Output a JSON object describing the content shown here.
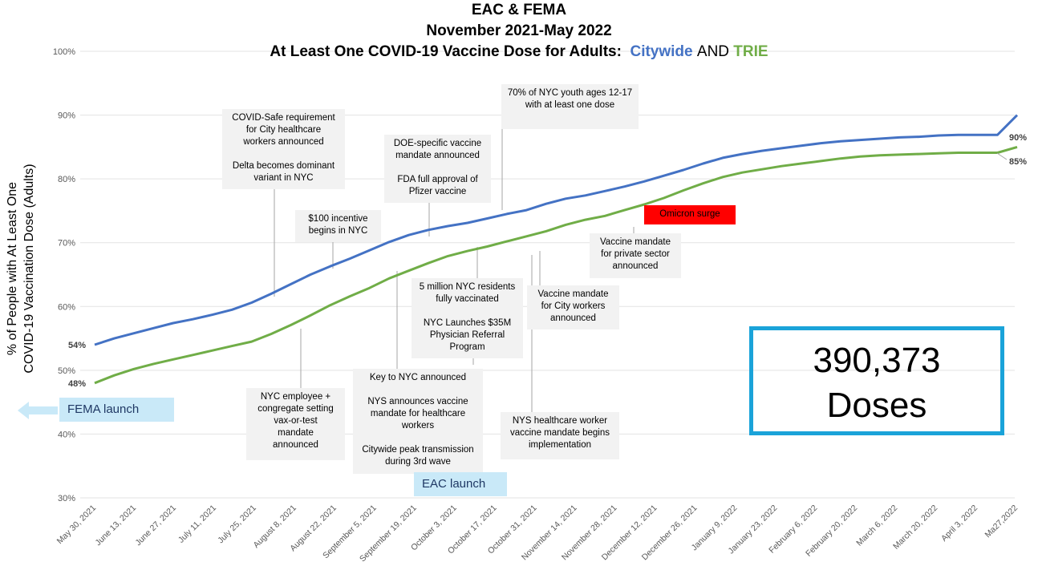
{
  "title": {
    "line1": "EAC & FEMA",
    "line2": "November 2021-May 2022",
    "line3_prefix": "At Least One COVID-19 Vaccine Dose for Adults:",
    "line3_city": "Citywide",
    "line3_and": "AND",
    "line3_trie": "TRIE"
  },
  "annotations": [
    {
      "id": "ann-covid-safe",
      "text": "COVID-Safe requirement\nfor City healthcare\nworkers announced\n\nDelta becomes dominant\nvariant in NYC"
    },
    {
      "id": "ann-incentive",
      "text": "$100 incentive\nbegins in NYC"
    },
    {
      "id": "ann-doe",
      "text": "DOE-specific vaccine\nmandate announced\n\nFDA full approval of\nPfizer vaccine"
    },
    {
      "id": "ann-youth",
      "text": "70% of NYC youth ages 12-17\nwith at least one dose"
    },
    {
      "id": "ann-omicron",
      "text": "Omicron surge"
    },
    {
      "id": "ann-private",
      "text": "Vaccine mandate\nfor private sector\nannounced"
    },
    {
      "id": "ann-5million",
      "text": "5 million NYC residents\nfully vaccinated\n\nNYC Launches $35M\nPhysician Referral\nProgram"
    },
    {
      "id": "ann-city-workers",
      "text": "Vaccine mandate\nfor City workers\nannounced"
    },
    {
      "id": "ann-nyc-employee",
      "text": "NYC employee +\ncongregate setting\nvax-or-test\nmandate\nannounced"
    },
    {
      "id": "ann-key-nyc",
      "text": "Key to NYC announced\n\nNYS announces vaccine\nmandate for healthcare\nworkers\n\nCitywide peak transmission\nduring 3rd wave"
    },
    {
      "id": "ann-nys-hcw",
      "text": "NYS healthcare worker\nvaccine mandate begins\nimplementation"
    }
  ],
  "launch_labels": {
    "fema": "FEMA launch",
    "eac": "EAC launch"
  },
  "doses_box": {
    "number": "390,373",
    "label": "Doses"
  },
  "colors": {
    "citywide": "#4472C4",
    "trie": "#70AD47",
    "doses_border": "#1AA3D9",
    "launch_bg": "#C9E9F8",
    "omicron_bg": "#FF0000"
  },
  "chart_data": {
    "type": "line",
    "ylabel": "% of People with At Least One COVID-19 Vaccination Dose (Adults)",
    "ylabel_line1": "% of People with At Least One",
    "ylabel_line2": "COVID-19 Vaccination Dose (Adults)",
    "xlabel": "",
    "ylim": [
      30,
      100
    ],
    "yticks": [
      "30%",
      "40%",
      "50%",
      "60%",
      "70%",
      "80%",
      "90%",
      "100%"
    ],
    "ytick_values": [
      30,
      40,
      50,
      60,
      70,
      80,
      90,
      100
    ],
    "x_tick_labels": [
      "May 30, 2021",
      "June 13, 2021",
      "June 27, 2021",
      "July 11, 2021",
      "July 25, 2021",
      "August 8, 2021",
      "August 22, 2021",
      "September 5, 2021",
      "September 19, 2021",
      "October 3, 2021",
      "October 17, 2021",
      "October 31, 2021",
      "November 14, 2021",
      "November 28, 2021",
      "December 12, 2021",
      "December 26, 2021",
      "January 9, 2022",
      "January 23, 2022",
      "February 6, 2022",
      "February 20, 2022",
      "March 6, 2022",
      "March 20, 2022",
      "April 3, 2022",
      "Ma27,2022"
    ],
    "grid": "horizontal",
    "series": [
      {
        "name": "Citywide",
        "color": "#4472C4",
        "x": [
          "2021-05-30",
          "2021-06-06",
          "2021-06-13",
          "2021-06-20",
          "2021-06-27",
          "2021-07-04",
          "2021-07-11",
          "2021-07-18",
          "2021-07-25",
          "2021-08-01",
          "2021-08-08",
          "2021-08-15",
          "2021-08-22",
          "2021-08-29",
          "2021-09-05",
          "2021-09-12",
          "2021-09-19",
          "2021-09-26",
          "2021-10-03",
          "2021-10-10",
          "2021-10-17",
          "2021-10-24",
          "2021-10-31",
          "2021-11-07",
          "2021-11-14",
          "2021-11-21",
          "2021-11-28",
          "2021-12-05",
          "2021-12-12",
          "2021-12-19",
          "2021-12-26",
          "2022-01-02",
          "2022-01-09",
          "2022-01-16",
          "2022-01-23",
          "2022-01-30",
          "2022-02-06",
          "2022-02-13",
          "2022-02-20",
          "2022-02-27",
          "2022-03-06",
          "2022-03-13",
          "2022-03-20",
          "2022-03-27",
          "2022-04-03",
          "2022-04-10",
          "2022-04-17",
          "2022-04-24"
        ],
        "values": [
          54,
          55,
          55.8,
          56.6,
          57.4,
          58,
          58.7,
          59.5,
          60.6,
          62,
          63.5,
          65,
          66.3,
          67.5,
          68.8,
          70.1,
          71.2,
          72,
          72.6,
          73.1,
          73.8,
          74.5,
          75.1,
          76.1,
          76.9,
          77.4,
          78.1,
          78.8,
          79.6,
          80.5,
          81.4,
          82.4,
          83.3,
          83.9,
          84.4,
          84.8,
          85.2,
          85.6,
          85.9,
          86.1,
          86.3,
          86.5,
          86.6,
          86.8,
          86.9,
          86.9,
          86.9,
          90
        ],
        "end_label": "90%",
        "start_label": "54%"
      },
      {
        "name": "TRIE",
        "color": "#70AD47",
        "x": [
          "2021-05-30",
          "2021-06-06",
          "2021-06-13",
          "2021-06-20",
          "2021-06-27",
          "2021-07-04",
          "2021-07-11",
          "2021-07-18",
          "2021-07-25",
          "2021-08-01",
          "2021-08-08",
          "2021-08-15",
          "2021-08-22",
          "2021-08-29",
          "2021-09-05",
          "2021-09-12",
          "2021-09-19",
          "2021-09-26",
          "2021-10-03",
          "2021-10-10",
          "2021-10-17",
          "2021-10-24",
          "2021-10-31",
          "2021-11-07",
          "2021-11-14",
          "2021-11-21",
          "2021-11-28",
          "2021-12-05",
          "2021-12-12",
          "2021-12-19",
          "2021-12-26",
          "2022-01-02",
          "2022-01-09",
          "2022-01-16",
          "2022-01-23",
          "2022-01-30",
          "2022-02-06",
          "2022-02-13",
          "2022-02-20",
          "2022-02-27",
          "2022-03-06",
          "2022-03-13",
          "2022-03-20",
          "2022-03-27",
          "2022-04-03",
          "2022-04-10",
          "2022-04-17",
          "2022-04-24"
        ],
        "values": [
          48,
          49.2,
          50.2,
          51,
          51.7,
          52.4,
          53.1,
          53.8,
          54.5,
          55.7,
          57.1,
          58.6,
          60.2,
          61.6,
          62.9,
          64.4,
          65.6,
          66.8,
          67.9,
          68.7,
          69.4,
          70.2,
          71,
          71.8,
          72.8,
          73.6,
          74.2,
          75.1,
          76,
          77,
          78.2,
          79.3,
          80.3,
          81,
          81.5,
          82,
          82.4,
          82.8,
          83.2,
          83.5,
          83.7,
          83.8,
          83.9,
          84,
          84.1,
          84.1,
          84.1,
          85
        ],
        "end_label": "85%",
        "start_label": "48%"
      }
    ]
  }
}
